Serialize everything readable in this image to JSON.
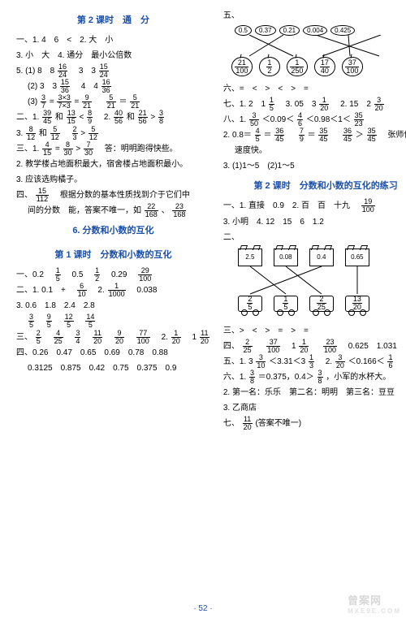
{
  "colors": {
    "accent": "#1a4fa8",
    "text": "#000000",
    "bg": "#ffffff",
    "divider": "#3a6db5",
    "watermark": "#d8d8d8"
  },
  "left": {
    "title1": "第 2 课时　通　分",
    "l1": "一、1. 4　6　<　2. 大　小",
    "l2": "3. 小　大　4. 通分　最小公倍数",
    "l3a": "5. (1) 8　8",
    "l3b": "　3　3",
    "l4a": "(2) 3　3",
    "l4b": "　4　4",
    "l5a": "(3)",
    "l5b": "=",
    "l5c": "=",
    "l5d": "　",
    "l5e": "＝",
    "l6a": "二、1.",
    "l6b": "和",
    "l6c": "<",
    "l6d": "　2.",
    "l6e": "和",
    "l6f": ">",
    "l7a": "3.",
    "l7b": "和",
    "l7c": ">",
    "l8a": "三、1.",
    "l8b": "=",
    "l8c": ">",
    "l8d": "　答：明明跑得快些。",
    "l9": "2. 教学楼占地面积最大，宿舍楼占地面积最小。",
    "l10": "3. 应该选购橘子。",
    "l11a": "四、",
    "l11b": "　根据分数的基本性质找到介于它们中",
    "l12a": "间的分数　能，答案不唯一，如",
    "l12b": "、",
    "title2": "6. 分数和小数的互化",
    "title3": "第 1 课时　分数和小数的互化",
    "l13a": "一、0.2　",
    "l13b": "　0.5　",
    "l13c": "　0.29　",
    "l14a": "二、1. 0.1　+　",
    "l14b": "　2.",
    "l14c": "　0.038",
    "l15": "3. 0.6　1.8　2.4　2.8",
    "l16sp": " ",
    "l17a": "三、",
    "l17b": " ",
    "l17c": " ",
    "l17d": " ",
    "l17e": "　2.",
    "l18": "四、0.26　0.47　0.65　0.69　0.78　0.88",
    "l19": "0.3125　0.875　0.42　0.75　0.375　0.9"
  },
  "right": {
    "ovals": [
      "0.5",
      "0.37",
      "0.21",
      "0.004",
      "0.425"
    ],
    "apples": [
      [
        "21",
        "100"
      ],
      [
        "1",
        "2"
      ],
      [
        "1",
        "250"
      ],
      [
        "17",
        "40"
      ],
      [
        "37",
        "100"
      ]
    ],
    "match1_lines": [
      [
        18,
        0,
        72,
        26
      ],
      [
        60,
        0,
        18,
        26
      ],
      [
        100,
        0,
        178,
        26
      ],
      [
        140,
        0,
        142,
        26
      ],
      [
        180,
        0,
        108,
        26
      ]
    ],
    "l6": "六、=　<　>　<　>　=",
    "l7a": "七、1. 2　1",
    "l7b": "　3. 05　3",
    "l7c": "　2. 15　2",
    "l8a": "八、1.",
    "l8b": "＜0.09＜",
    "l8c": "＜0.98＜1＜",
    "l9a": "2. 0.8＝",
    "l9b": "＝",
    "l9c": "　",
    "l9d": "＝",
    "l9e": "　",
    "l9f": "＞",
    "l9g": "　张师傅加工",
    "l10": "速度快。",
    "l11": "3. (1)1～5　(2)1～5",
    "title4": "第 2 课时　分数和小数的互化的练习",
    "l12a": "一、1. 直接　0.9　2. 百　百　十九　",
    "l13": "3. 小明　4. 12　15　6　1.2",
    "sec2": "二、",
    "cards_top": [
      "2.5",
      "0.08",
      "0.4",
      "0.65"
    ],
    "cards_bot": [
      [
        "2",
        "5"
      ],
      [
        "1",
        "5"
      ],
      [
        "2",
        "25"
      ],
      [
        "13",
        "20"
      ]
    ],
    "match2_lines": [
      [
        15,
        0,
        59,
        34
      ],
      [
        59,
        0,
        103,
        34
      ],
      [
        103,
        0,
        15,
        34
      ],
      [
        147,
        0,
        147,
        34
      ]
    ],
    "l14": "三、>　<　>　=　>　=",
    "l15a": "四、",
    "l15b": "　",
    "l15c": "　1",
    "l15d": "　",
    "l15e": "　0.625　1.031",
    "l16a": "五、1. 3",
    "l16b": "＜3.31＜3",
    "l16c": "　2.",
    "l16d": "＜0.166＜",
    "l17a": "六、1.",
    "l17b": "＝0.375，0.4＞",
    "l17c": "，小军的水杯大。",
    "l18": "2. 第一名：乐乐　第二名：明明　第三名：豆豆",
    "l19": "3. 乙商店",
    "l20a": "七、",
    "l20b": "(答案不唯一)"
  },
  "footer": "· 52 ·",
  "watermark": {
    "big": "曾案网",
    "small": "MXE9E.COM"
  }
}
